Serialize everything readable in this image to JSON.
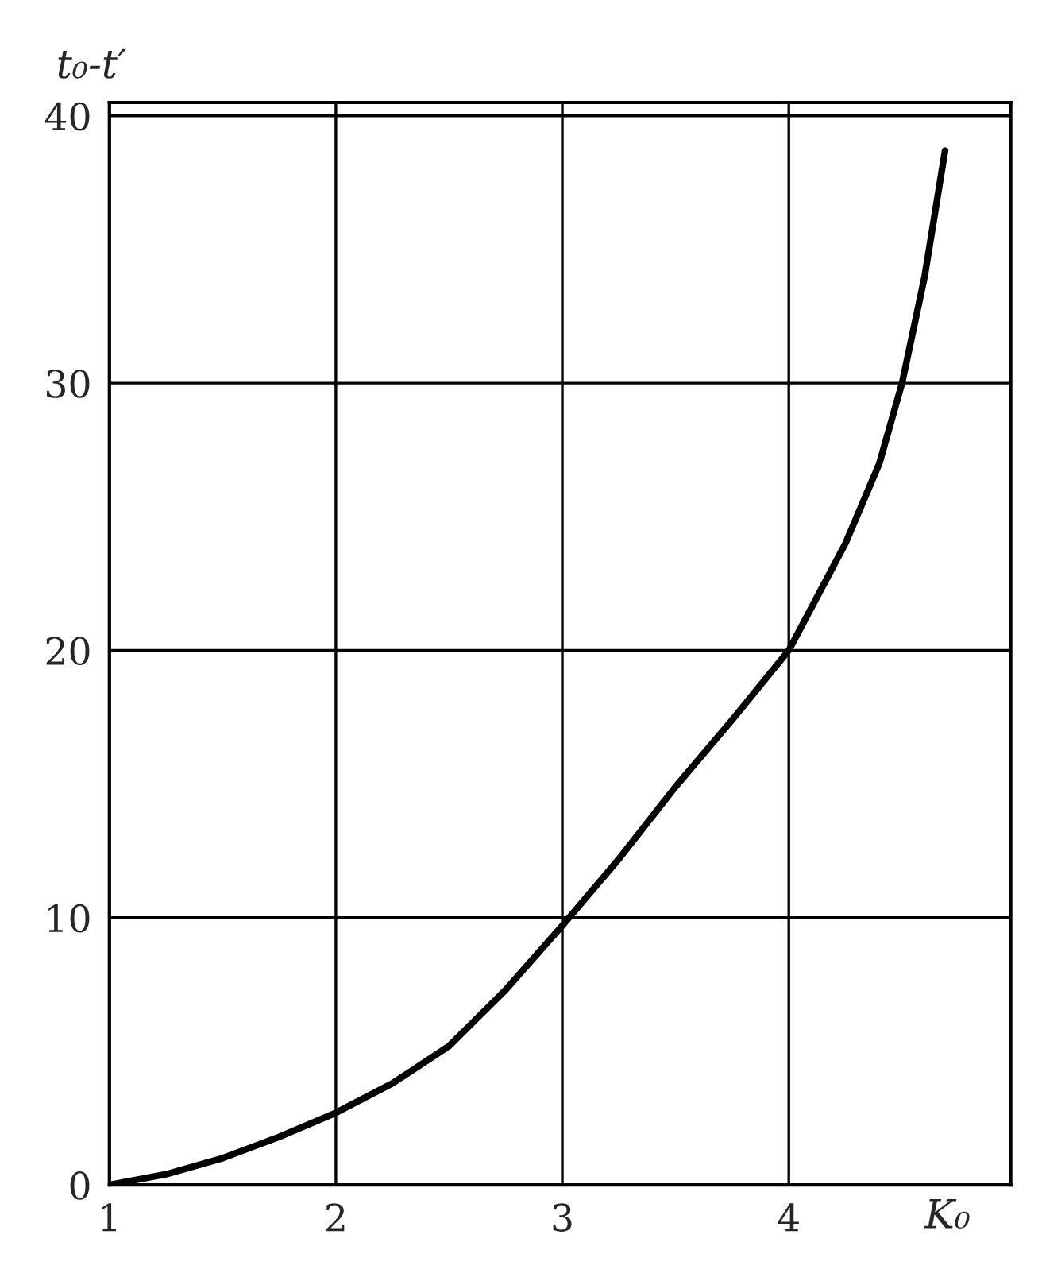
{
  "chart_data": {
    "type": "line",
    "xlabel": "K₀",
    "ylabel": "t₀-t′",
    "x": [
      1,
      1.25,
      1.5,
      1.75,
      2,
      2.25,
      2.5,
      2.75,
      3,
      3.25,
      3.5,
      3.75,
      4,
      4.25,
      4.4,
      4.5,
      4.6,
      4.69
    ],
    "series": [
      {
        "color": "#000000",
        "values": [
          0,
          0.4,
          1.0,
          1.8,
          2.7,
          3.8,
          5.2,
          7.3,
          9.7,
          12.2,
          14.9,
          17.4,
          20,
          24,
          27,
          30,
          34,
          38.7
        ]
      }
    ],
    "xlim": [
      1,
      4.98
    ],
    "ylim": [
      0,
      40.5
    ],
    "xticks": [
      1,
      2,
      3,
      4
    ],
    "yticks": [
      0,
      10,
      20,
      30,
      40
    ],
    "grid": true,
    "marker": "none",
    "line_style": "solid"
  }
}
